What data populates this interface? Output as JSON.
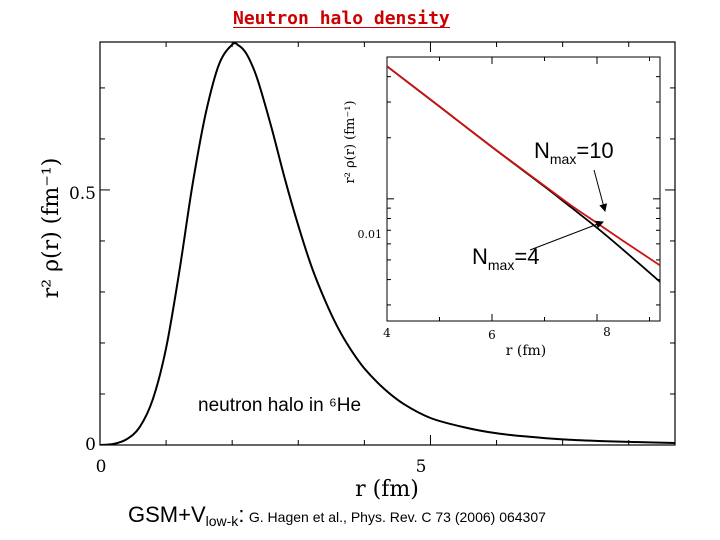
{
  "slide": {
    "title": "Neutron halo density"
  },
  "chart_data": [
    {
      "type": "line",
      "role": "main",
      "xlabel": "r (fm)",
      "ylabel": "r² ρ(r) (fm⁻¹)",
      "xlim": [
        0,
        8.7
      ],
      "ylim": [
        0,
        0.79
      ],
      "xticks": [
        {
          "value": 0,
          "label": "0"
        },
        {
          "value": 5,
          "label": "5"
        }
      ],
      "yticks": [
        {
          "value": 0,
          "label": "0"
        },
        {
          "value": 0.5,
          "label": "0.5"
        }
      ],
      "annotation": "neutron halo in ⁶He",
      "series": [
        {
          "name": "neutron halo in 6He",
          "color": "#000000",
          "x": [
            0,
            0.2,
            0.4,
            0.6,
            0.8,
            1.0,
            1.2,
            1.4,
            1.6,
            1.8,
            2.0,
            2.1,
            2.2,
            2.3,
            2.4,
            2.6,
            2.8,
            3.0,
            3.2,
            3.4,
            3.6,
            3.8,
            4.0,
            4.3,
            4.6,
            5.0,
            5.5,
            6.0,
            6.5,
            7.0,
            7.5,
            8.0,
            8.7
          ],
          "y": [
            0,
            0.002,
            0.011,
            0.035,
            0.09,
            0.19,
            0.34,
            0.51,
            0.65,
            0.746,
            0.785,
            0.783,
            0.77,
            0.745,
            0.71,
            0.62,
            0.52,
            0.43,
            0.35,
            0.285,
            0.23,
            0.186,
            0.15,
            0.11,
            0.08,
            0.053,
            0.035,
            0.023,
            0.016,
            0.011,
            0.008,
            0.006,
            0.004
          ]
        }
      ]
    },
    {
      "type": "line",
      "role": "inset",
      "xlabel": "r (fm)",
      "ylabel": "r² ρ(r) (fm⁻¹)",
      "yscale": "log",
      "xlim": [
        4,
        9.2
      ],
      "ylim": [
        0.0025,
        0.05
      ],
      "xticks": [
        {
          "value": 4,
          "label": "4"
        },
        {
          "value": 6,
          "label": "6"
        },
        {
          "value": 8,
          "label": "8"
        }
      ],
      "yticks": [
        {
          "value": 0.01,
          "label": "0.01"
        }
      ],
      "annotations": [
        {
          "prefix": "N",
          "sub": "max",
          "suffix": "=10",
          "points_to": {
            "x": 8.0,
            "series": "Nmax=10"
          }
        },
        {
          "prefix": "N",
          "sub": "max",
          "suffix": "=4",
          "points_to": {
            "x": 8.0,
            "series": "Nmax=4"
          }
        }
      ],
      "series": [
        {
          "name": "Nmax=4",
          "color": "#000000",
          "x": [
            4.0,
            5.0,
            6.0,
            7.0,
            7.5,
            8.0,
            8.5,
            9.2
          ],
          "y": [
            0.045,
            0.0285,
            0.018,
            0.0115,
            0.0091,
            0.0072,
            0.0056,
            0.0039
          ]
        },
        {
          "name": "Nmax=10",
          "color": "#cc1111",
          "x": [
            4.0,
            5.0,
            6.0,
            7.0,
            7.5,
            8.0,
            8.5,
            9.2
          ],
          "y": [
            0.045,
            0.0285,
            0.018,
            0.0116,
            0.0093,
            0.0076,
            0.0062,
            0.0047
          ]
        }
      ]
    }
  ],
  "caption": {
    "method": "GSM+V",
    "method_sub": "low-k",
    "colon": ":",
    "reference": "G. Hagen et al., Phys. Rev. C 73 (2006) 064307"
  }
}
